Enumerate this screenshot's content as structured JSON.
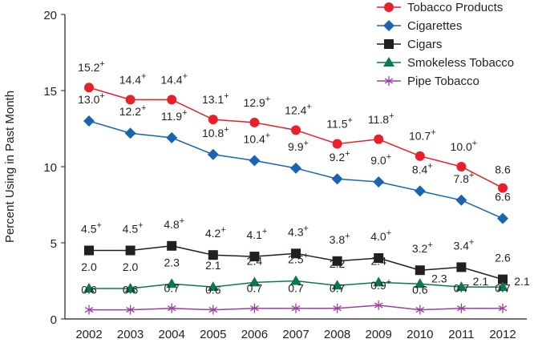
{
  "chart_data": {
    "type": "line",
    "title": "",
    "xlabel": "",
    "ylabel": "Percent Using in Past Month",
    "ylim": [
      0,
      20
    ],
    "yticks": [
      0,
      5,
      10,
      15,
      20
    ],
    "x": [
      2002,
      2003,
      2004,
      2005,
      2006,
      2007,
      2008,
      2009,
      2010,
      2011,
      2012
    ],
    "grid": false,
    "legend": "top-right",
    "significance_marker": "+",
    "series": [
      {
        "name": "Tobacco Products",
        "color": "#e8202a",
        "marker": "circle",
        "values": [
          15.2,
          14.4,
          14.4,
          13.1,
          12.9,
          12.4,
          11.5,
          11.8,
          10.7,
          10.0,
          8.6
        ],
        "labels": [
          "15.2",
          "14.4",
          "14.4",
          "13.1",
          "12.9",
          "12.4",
          "11.5",
          "11.8",
          "10.7",
          "10.0",
          "8.6"
        ],
        "significant": [
          true,
          true,
          true,
          true,
          true,
          true,
          true,
          true,
          true,
          true,
          false
        ]
      },
      {
        "name": "Cigarettes",
        "color": "#1a64b0",
        "marker": "diamond",
        "values": [
          13.0,
          12.2,
          11.9,
          10.8,
          10.4,
          9.9,
          9.2,
          9.0,
          8.4,
          7.8,
          6.6
        ],
        "labels": [
          "13.0",
          "12.2",
          "11.9",
          "10.8",
          "10.4",
          "9.9",
          "9.2",
          "9.0",
          "8.4",
          "7.8",
          "6.6"
        ],
        "significant": [
          true,
          true,
          true,
          true,
          true,
          true,
          true,
          true,
          true,
          true,
          false
        ]
      },
      {
        "name": "Cigars",
        "color": "#231f20",
        "marker": "square",
        "values": [
          4.5,
          4.5,
          4.8,
          4.2,
          4.1,
          4.3,
          3.8,
          4.0,
          3.2,
          3.4,
          2.6
        ],
        "labels": [
          "4.5",
          "4.5",
          "4.8",
          "4.2",
          "4.1",
          "4.3",
          "3.8",
          "4.0",
          "3.2",
          "3.4",
          "2.6"
        ],
        "significant": [
          true,
          true,
          true,
          true,
          true,
          true,
          true,
          true,
          true,
          true,
          false
        ]
      },
      {
        "name": "Smokeless Tobacco",
        "color": "#0a7a4c",
        "marker": "triangle",
        "values": [
          2.0,
          2.0,
          2.3,
          2.1,
          2.4,
          2.5,
          2.2,
          2.4,
          2.3,
          2.1,
          2.1
        ],
        "labels": [
          "2.0",
          "2.0",
          "2.3",
          "2.1",
          "2.4",
          "2.5",
          "2.2",
          "2.4",
          "2.3",
          "2.1",
          "2.1"
        ],
        "significant": [
          false,
          false,
          false,
          false,
          false,
          true,
          false,
          false,
          false,
          false,
          false
        ]
      },
      {
        "name": "Pipe Tobacco",
        "color": "#9b3fa0",
        "marker": "asterisk",
        "values": [
          0.6,
          0.6,
          0.7,
          0.6,
          0.7,
          0.7,
          0.7,
          0.9,
          0.6,
          0.7,
          0.7
        ],
        "labels": [
          "0.6",
          "0.6",
          "0.7",
          "0.6",
          "0.7",
          "0.7",
          "0.7",
          "0.9",
          "0.6",
          "0.7",
          "0.7"
        ],
        "significant": [
          false,
          false,
          false,
          false,
          false,
          false,
          false,
          true,
          false,
          false,
          false
        ]
      }
    ]
  }
}
